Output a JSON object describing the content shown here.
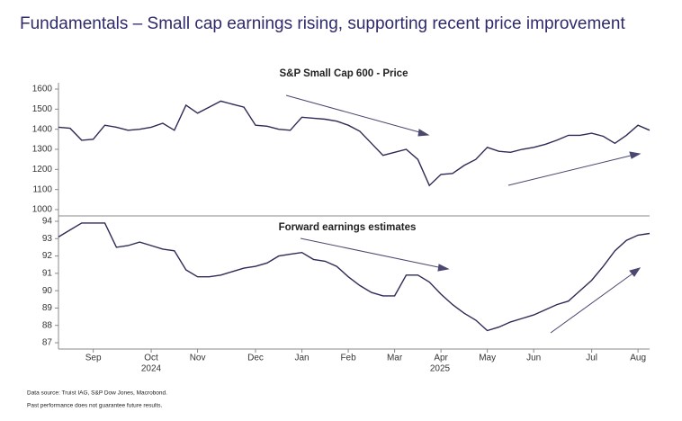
{
  "title": "Fundamentals – Small cap earnings rising, supporting recent price improvement",
  "notes": [
    "Data source: Truist IAG, S&P Dow Jones, Macrobond.",
    "Past performance does not guarantee future results."
  ],
  "chart_data": [
    {
      "type": "line",
      "title": "S&P Small Cap 600 - Price",
      "color": "#2d2b55",
      "values": [
        1410,
        1405,
        1345,
        1350,
        1420,
        1410,
        1395,
        1400,
        1410,
        1430,
        1395,
        1520,
        1480,
        1510,
        1540,
        1525,
        1510,
        1420,
        1415,
        1400,
        1395,
        1460,
        1455,
        1450,
        1440,
        1420,
        1390,
        1330,
        1270,
        1285,
        1300,
        1250,
        1120,
        1175,
        1180,
        1220,
        1250,
        1310,
        1290,
        1285,
        1300,
        1310,
        1325,
        1345,
        1370,
        1370,
        1380,
        1365,
        1330,
        1370,
        1420,
        1395
      ],
      "ylim": [
        1000,
        1600
      ],
      "yticks": [
        1000,
        1100,
        1200,
        1300,
        1400,
        1500,
        1600
      ]
    },
    {
      "type": "line",
      "title": "Forward earnings estimates",
      "color": "#2d2b55",
      "categories": [
        null,
        null,
        null,
        "Sep",
        null,
        null,
        null,
        null,
        "Oct",
        null,
        null,
        null,
        "Nov",
        null,
        null,
        null,
        null,
        "Dec",
        null,
        null,
        null,
        "Jan",
        null,
        null,
        null,
        "Feb",
        null,
        null,
        null,
        "Mar",
        null,
        null,
        null,
        "Apr",
        null,
        null,
        null,
        "May",
        null,
        null,
        null,
        "Jun",
        null,
        null,
        null,
        null,
        "Jul",
        null,
        null,
        null,
        "Aug",
        null
      ],
      "year_labels": [
        "2024",
        "2025"
      ],
      "values": [
        93.1,
        93.5,
        93.9,
        93.9,
        93.9,
        92.5,
        92.6,
        92.8,
        92.6,
        92.4,
        92.3,
        91.2,
        90.8,
        90.8,
        90.9,
        91.1,
        91.3,
        91.4,
        91.6,
        92.0,
        92.1,
        92.2,
        91.8,
        91.7,
        91.4,
        90.8,
        90.3,
        89.9,
        89.7,
        89.7,
        90.9,
        90.9,
        90.5,
        89.8,
        89.2,
        88.7,
        88.3,
        87.7,
        87.9,
        88.2,
        88.4,
        88.6,
        88.9,
        89.2,
        89.4,
        90.0,
        90.6,
        91.4,
        92.3,
        92.9,
        93.2,
        93.3
      ],
      "ylim": [
        87,
        94
      ],
      "yticks": [
        87,
        88,
        89,
        90,
        91,
        92,
        93,
        94
      ]
    }
  ]
}
